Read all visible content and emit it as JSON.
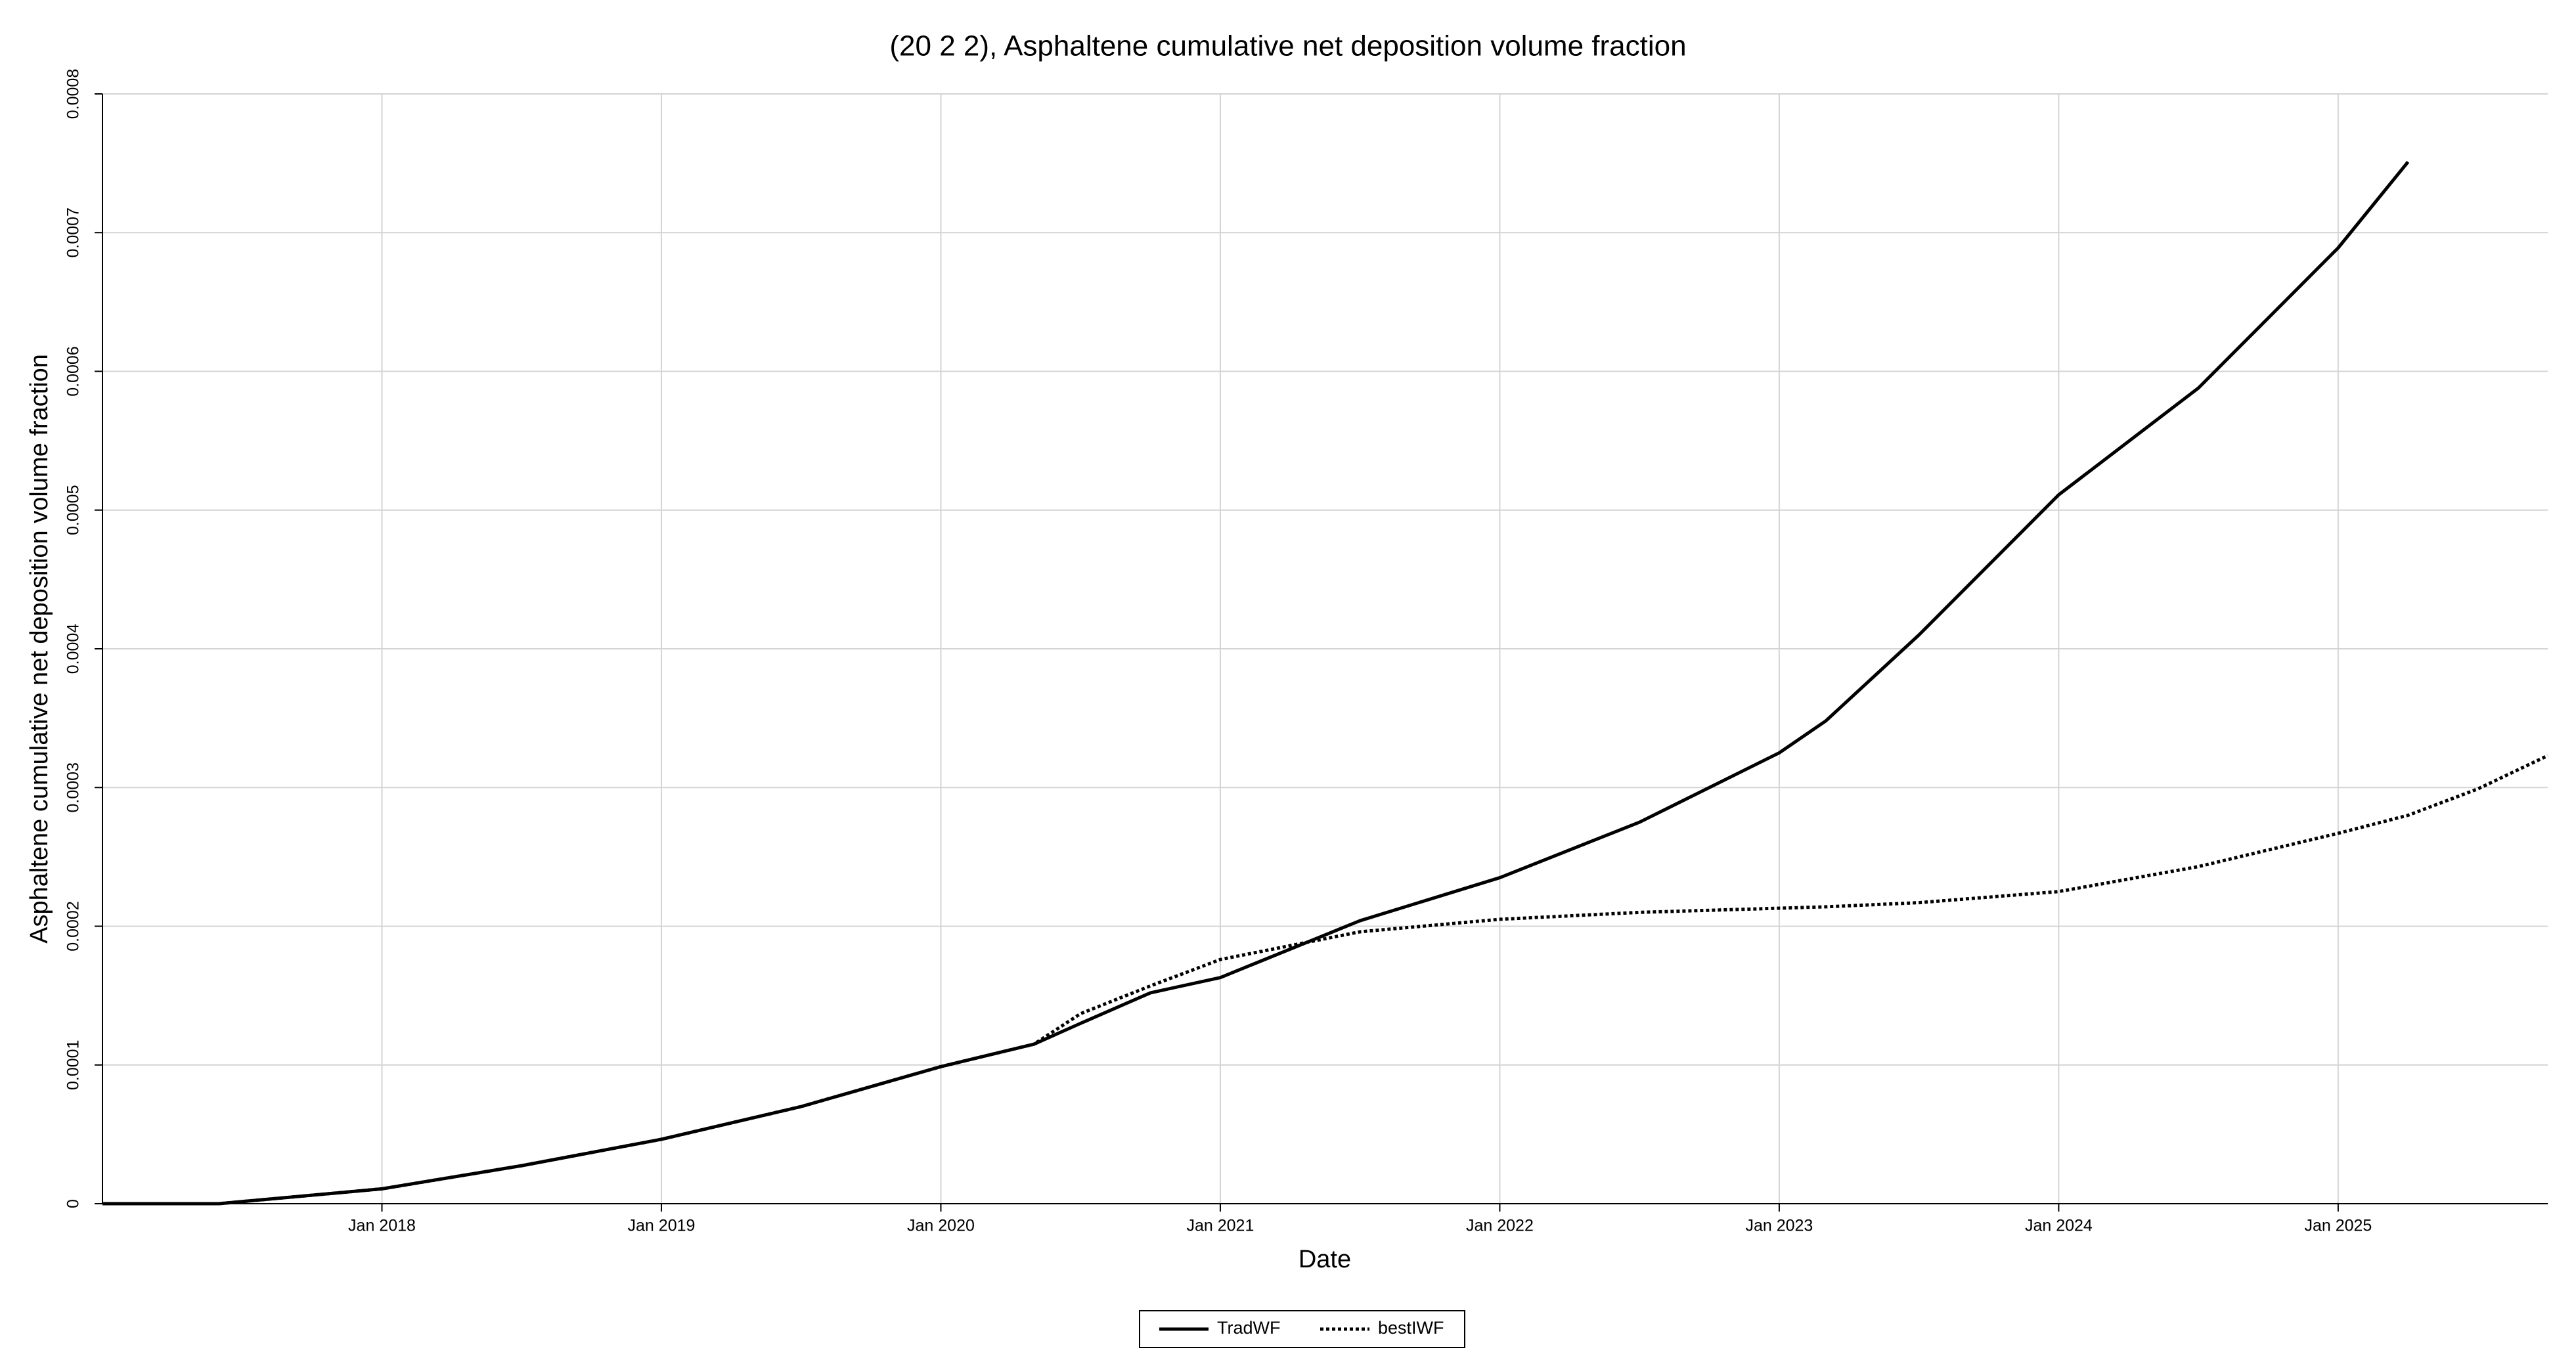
{
  "chart_data": {
    "type": "line",
    "title": "(20 2 2), Asphaltene cumulative net deposition volume fraction",
    "x_label": "Date",
    "y_label": "Asphaltene cumulative net deposition volume fraction",
    "x": [
      "2017-01",
      "2017-06",
      "2018-01",
      "2018-07",
      "2019-01",
      "2019-07",
      "2020-01",
      "2020-05",
      "2020-07",
      "2020-10",
      "2021-01",
      "2021-07",
      "2022-01",
      "2022-07",
      "2023-01",
      "2023-03",
      "2023-07",
      "2024-01",
      "2024-07",
      "2025-01",
      "2025-04",
      "2025-07",
      "2025-10"
    ],
    "series": [
      {
        "name": "TradWF",
        "color": "#000000",
        "dash": "solid",
        "values": [
          0,
          0,
          1.07e-05,
          2.74e-05,
          4.64e-05,
          7e-05,
          9.88e-05,
          0.000115,
          0.00013,
          0.000152,
          0.000163,
          0.000204,
          0.000235,
          0.000275,
          0.000325,
          0.000348,
          0.00041,
          0.000511,
          0.000588,
          0.000689,
          0.000751,
          null,
          null
        ]
      },
      {
        "name": "bestIWF",
        "color": "#000000",
        "dash": "dotted",
        "values": [
          0,
          0,
          1.07e-05,
          2.74e-05,
          4.64e-05,
          7e-05,
          9.88e-05,
          0.000115,
          0.000137,
          0.000157,
          0.000176,
          0.000196,
          0.000205,
          0.00021,
          0.000213,
          0.000214,
          0.000217,
          0.000225,
          0.000243,
          0.000267,
          0.00028,
          0.000299,
          0.000323
        ]
      }
    ],
    "xlim": [
      "2017-01",
      "2025-10"
    ],
    "xticks": [
      {
        "value": "2018-01",
        "label": "Jan 2018"
      },
      {
        "value": "2019-01",
        "label": "Jan 2019"
      },
      {
        "value": "2020-01",
        "label": "Jan 2020"
      },
      {
        "value": "2021-01",
        "label": "Jan 2021"
      },
      {
        "value": "2022-01",
        "label": "Jan 2022"
      },
      {
        "value": "2023-01",
        "label": "Jan 2023"
      },
      {
        "value": "2024-01",
        "label": "Jan 2024"
      },
      {
        "value": "2025-01",
        "label": "Jan 2025"
      }
    ],
    "ylim": [
      0,
      0.0008
    ],
    "yticks": [
      0,
      0.0001,
      0.0002,
      0.0003,
      0.0004,
      0.0005,
      0.0006,
      0.0007,
      0.0008
    ],
    "grid": true,
    "legend": "bottom"
  }
}
